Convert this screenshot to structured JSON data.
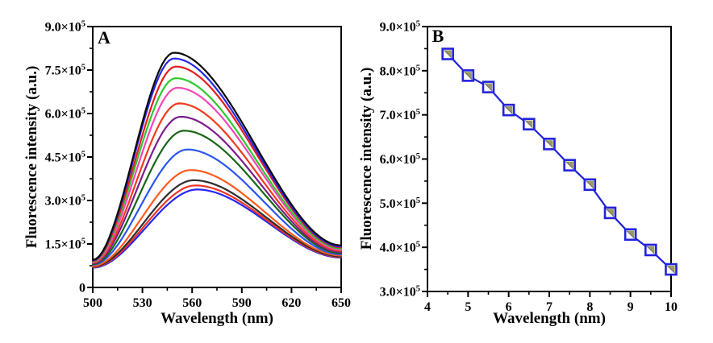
{
  "figure": {
    "background": "#ffffff",
    "axis_color": "#000000"
  },
  "chart_data": [
    {
      "type": "line",
      "panel_label": "A",
      "xlabel": "Wavelength (nm)",
      "ylabel": "Fluorescence intensity (a.u.)",
      "xlim": [
        500,
        650
      ],
      "ylim": [
        0,
        900000
      ],
      "x_ticks": [
        500,
        530,
        560,
        590,
        620,
        650
      ],
      "x_tick_labels": [
        "500",
        "530",
        "560",
        "590",
        "620",
        "650"
      ],
      "y_ticks": [
        0,
        150000,
        300000,
        450000,
        600000,
        750000,
        900000
      ],
      "y_tick_labels": [
        {
          "m": "0",
          "e": null
        },
        {
          "m": "1.5",
          "e": "5"
        },
        {
          "m": "3.0",
          "e": "5"
        },
        {
          "m": "4.5",
          "e": "5"
        },
        {
          "m": "6.0",
          "e": "5"
        },
        {
          "m": "7.5",
          "e": "5"
        },
        {
          "m": "9.0",
          "e": "5"
        }
      ],
      "grid": false,
      "legend": "none",
      "series": [
        {
          "color": "#0a0a0a",
          "peak_wavelength": 549,
          "peak_intensity": 810000,
          "start_intensity": 95000,
          "end_intensity": 145000
        },
        {
          "color": "#2727e8",
          "peak_wavelength": 549,
          "peak_intensity": 790000,
          "start_intensity": 93000,
          "end_intensity": 141000
        },
        {
          "color": "#e31e1e",
          "peak_wavelength": 550,
          "peak_intensity": 762000,
          "start_intensity": 91000,
          "end_intensity": 138000
        },
        {
          "color": "#2ec82e",
          "peak_wavelength": 550,
          "peak_intensity": 722000,
          "start_intensity": 89000,
          "end_intensity": 134000
        },
        {
          "color": "#f446b8",
          "peak_wavelength": 551,
          "peak_intensity": 689000,
          "start_intensity": 87000,
          "end_intensity": 130000
        },
        {
          "color": "#f2391c",
          "peak_wavelength": 552,
          "peak_intensity": 635000,
          "start_intensity": 85000,
          "end_intensity": 126000
        },
        {
          "color": "#7a1d8c",
          "peak_wavelength": 553,
          "peak_intensity": 589000,
          "start_intensity": 83000,
          "end_intensity": 122000
        },
        {
          "color": "#176617",
          "peak_wavelength": 555,
          "peak_intensity": 541000,
          "start_intensity": 80000,
          "end_intensity": 118000
        },
        {
          "color": "#2a55ee",
          "peak_wavelength": 557,
          "peak_intensity": 476000,
          "start_intensity": 78000,
          "end_intensity": 114000
        },
        {
          "color": "#ff5a1c",
          "peak_wavelength": 559,
          "peak_intensity": 405000,
          "start_intensity": 74000,
          "end_intensity": 110000
        },
        {
          "color": "#2e2e2e",
          "peak_wavelength": 561,
          "peak_intensity": 370000,
          "start_intensity": 72000,
          "end_intensity": 107000
        },
        {
          "color": "#ee3328",
          "peak_wavelength": 562,
          "peak_intensity": 352000,
          "start_intensity": 70000,
          "end_intensity": 105000
        },
        {
          "color": "#2626ee",
          "peak_wavelength": 563,
          "peak_intensity": 338000,
          "start_intensity": 68000,
          "end_intensity": 103000
        }
      ]
    },
    {
      "type": "scatter",
      "panel_label": "B",
      "xlabel": "Wavelength (nm)",
      "ylabel": "Fluorescence intensity (a.u.)",
      "xlim": [
        4,
        10
      ],
      "ylim": [
        300000,
        900000
      ],
      "x_ticks": [
        4,
        5,
        6,
        7,
        8,
        9,
        10
      ],
      "x_tick_labels": [
        "4",
        "5",
        "6",
        "7",
        "8",
        "9",
        "10"
      ],
      "y_ticks": [
        300000,
        400000,
        500000,
        600000,
        700000,
        800000,
        900000
      ],
      "y_tick_labels": [
        {
          "m": "3.0",
          "e": "5"
        },
        {
          "m": "4.0",
          "e": "5"
        },
        {
          "m": "5.0",
          "e": "5"
        },
        {
          "m": "6.0",
          "e": "5"
        },
        {
          "m": "7.0",
          "e": "5"
        },
        {
          "m": "8.0",
          "e": "5"
        },
        {
          "m": "9.0",
          "e": "5"
        }
      ],
      "grid": false,
      "legend": "none",
      "x": [
        4.5,
        5.0,
        5.5,
        6.0,
        6.5,
        7.0,
        7.5,
        8.0,
        8.5,
        9.0,
        9.5,
        10.0
      ],
      "y": [
        838000,
        789000,
        763000,
        711000,
        679000,
        634000,
        586000,
        542000,
        478000,
        429000,
        394000,
        350000
      ],
      "line_color": "#1f1fdd",
      "marker": "half-filled-square",
      "marker_edge_color": "#2323dd",
      "marker_fill_color": "#9a9a62",
      "marker_diagonal_color": "#6b6b6b"
    }
  ]
}
